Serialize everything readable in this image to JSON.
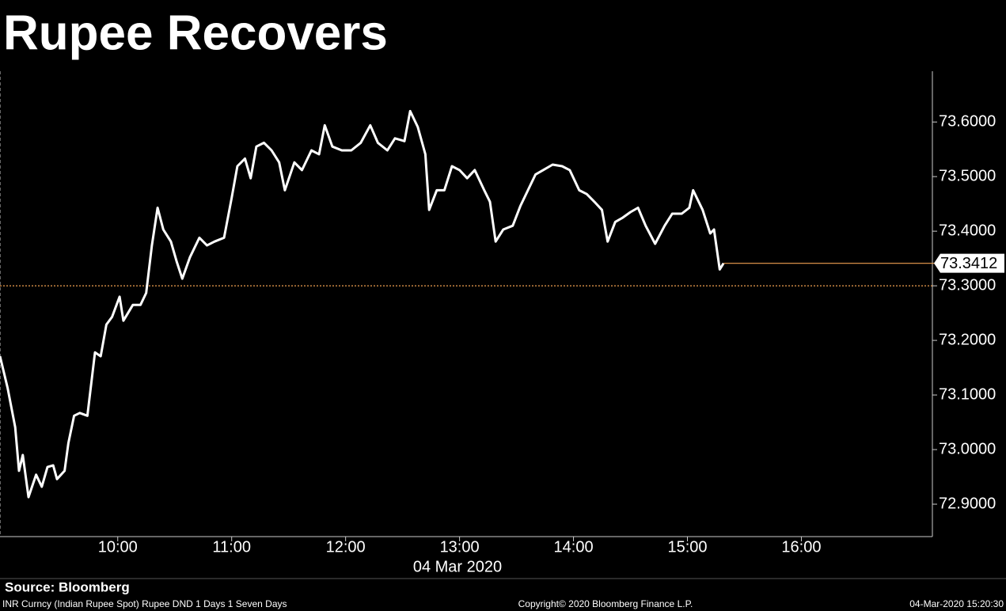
{
  "chart_data": {
    "type": "line",
    "title": "Rupee Recovers",
    "x_label": "04 Mar 2020",
    "source": "Source: Bloomberg",
    "footer_left": "INR Curncy (Indian Rupee Spot) Rupee DND 1 Days 1 Seven Days",
    "footer_center": "Copyright© 2020 Bloomberg Finance L.P.",
    "footer_right": "04-Mar-2020 15:20:30",
    "color": "#ffffff",
    "x": [
      "08:58",
      "09:02",
      "09:06",
      "09:08",
      "09:10",
      "09:13",
      "09:17",
      "09:20",
      "09:23",
      "09:26",
      "09:28",
      "09:32",
      "09:34",
      "09:37",
      "09:40",
      "09:44",
      "09:48",
      "09:51",
      "09:54",
      "09:57",
      "10:01",
      "10:03",
      "10:08",
      "10:12",
      "10:15",
      "10:18",
      "10:21",
      "10:24",
      "10:28",
      "10:31",
      "10:34",
      "10:38",
      "10:43",
      "10:47",
      "10:51",
      "10:56",
      "11:00",
      "11:03",
      "11:07",
      "11:10",
      "11:13",
      "11:17",
      "11:21",
      "11:25",
      "11:28",
      "11:33",
      "11:37",
      "11:42",
      "11:46",
      "11:49",
      "11:53",
      "11:58",
      "12:03",
      "12:08",
      "12:13",
      "12:17",
      "12:22",
      "12:26",
      "12:31",
      "12:34",
      "12:38",
      "12:42",
      "12:44",
      "12:48",
      "12:52",
      "12:56",
      "13:00",
      "13:04",
      "13:08",
      "13:13",
      "13:16",
      "13:19",
      "13:23",
      "13:28",
      "13:32",
      "13:36",
      "13:40",
      "13:44",
      "13:49",
      "13:54",
      "13:58",
      "14:03",
      "14:07",
      "14:11",
      "14:15",
      "14:18",
      "14:22",
      "14:26",
      "14:30",
      "14:34",
      "14:38",
      "14:43",
      "14:48",
      "14:52",
      "14:57",
      "15:01",
      "15:03",
      "15:08",
      "15:12",
      "15:14",
      "15:17",
      "15:19"
    ],
    "values": [
      73.171,
      73.113,
      73.041,
      72.961,
      72.99,
      72.913,
      72.954,
      72.932,
      72.968,
      72.971,
      72.946,
      72.961,
      73.012,
      73.062,
      73.067,
      73.062,
      73.178,
      73.171,
      73.229,
      73.243,
      73.28,
      73.236,
      73.265,
      73.265,
      73.287,
      73.374,
      73.443,
      73.403,
      73.381,
      73.345,
      73.313,
      73.352,
      73.388,
      73.374,
      73.381,
      73.388,
      73.461,
      73.519,
      73.533,
      73.497,
      73.555,
      73.562,
      73.548,
      73.526,
      73.475,
      73.526,
      73.512,
      73.548,
      73.541,
      73.594,
      73.555,
      73.548,
      73.548,
      73.562,
      73.594,
      73.562,
      73.548,
      73.57,
      73.565,
      73.62,
      73.591,
      73.541,
      73.439,
      73.475,
      73.475,
      73.519,
      73.512,
      73.497,
      73.512,
      73.475,
      73.454,
      73.381,
      73.403,
      73.41,
      73.446,
      73.475,
      73.504,
      73.512,
      73.522,
      73.519,
      73.512,
      73.475,
      73.468,
      73.454,
      73.439,
      73.381,
      73.417,
      73.425,
      73.435,
      73.443,
      73.41,
      73.377,
      73.41,
      73.432,
      73.432,
      73.443,
      73.475,
      73.439,
      73.396,
      73.403,
      73.33,
      73.3412
    ],
    "last_value": 73.3412,
    "last_value_color": "#f0a050",
    "reference_line": 73.3,
    "reference_color": "#f0a050",
    "xlim": [
      "08:58",
      "17:09"
    ],
    "xticks": [
      "10:00",
      "11:00",
      "12:00",
      "13:00",
      "14:00",
      "15:00",
      "16:00"
    ],
    "ylim": [
      72.8406,
      73.693
    ],
    "yticks": [
      {
        "value": 72.9,
        "label": "72.9000"
      },
      {
        "value": 73.0,
        "label": "73.0000"
      },
      {
        "value": 73.1,
        "label": "73.1000"
      },
      {
        "value": 73.2,
        "label": "73.2000"
      },
      {
        "value": 73.3,
        "label": "73.3000"
      },
      {
        "value": 73.4,
        "label": "73.4000"
      },
      {
        "value": 73.5,
        "label": "73.5000"
      },
      {
        "value": 73.6,
        "label": "73.6000"
      }
    ]
  }
}
